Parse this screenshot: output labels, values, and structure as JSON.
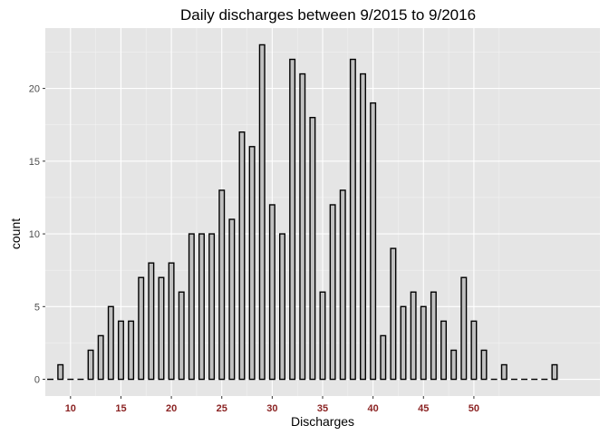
{
  "chart_data": {
    "type": "bar",
    "title": "Daily discharges between 9/2015 to 9/2016",
    "xlabel": "Discharges",
    "ylabel": "count",
    "xlim": [
      7.5,
      62.5
    ],
    "ylim": [
      -1.15,
      24.15
    ],
    "x_ticks": [
      10,
      15,
      20,
      25,
      30,
      35,
      40,
      45,
      50
    ],
    "y_ticks": [
      0,
      5,
      10,
      15,
      20
    ],
    "grid": true,
    "colors": {
      "panel_background": "#e5e5e5",
      "grid_major": "#ffffff",
      "grid_minor": "#f2f2f2",
      "bar_fill": "#c0c0c0",
      "bar_outline": "#000000",
      "x_tick_label": "#8b2323",
      "y_tick_label": "#4d4d4d"
    },
    "x": [
      8,
      9,
      10,
      11,
      12,
      13,
      14,
      15,
      16,
      17,
      18,
      19,
      20,
      21,
      22,
      23,
      24,
      25,
      26,
      27,
      28,
      29,
      30,
      31,
      32,
      33,
      34,
      35,
      36,
      37,
      38,
      39,
      40,
      41,
      42,
      43,
      44,
      45,
      46,
      47,
      48,
      49,
      50,
      51,
      52,
      53,
      54,
      55,
      56,
      57,
      58
    ],
    "values": [
      0,
      1,
      0,
      0,
      2,
      3,
      5,
      4,
      4,
      7,
      8,
      7,
      8,
      6,
      10,
      10,
      10,
      13,
      11,
      17,
      16,
      23,
      12,
      10,
      22,
      21,
      18,
      6,
      12,
      13,
      22,
      21,
      19,
      3,
      9,
      5,
      6,
      5,
      6,
      4,
      2,
      7,
      4,
      2,
      0,
      1,
      0,
      0,
      0,
      0,
      1
    ]
  }
}
